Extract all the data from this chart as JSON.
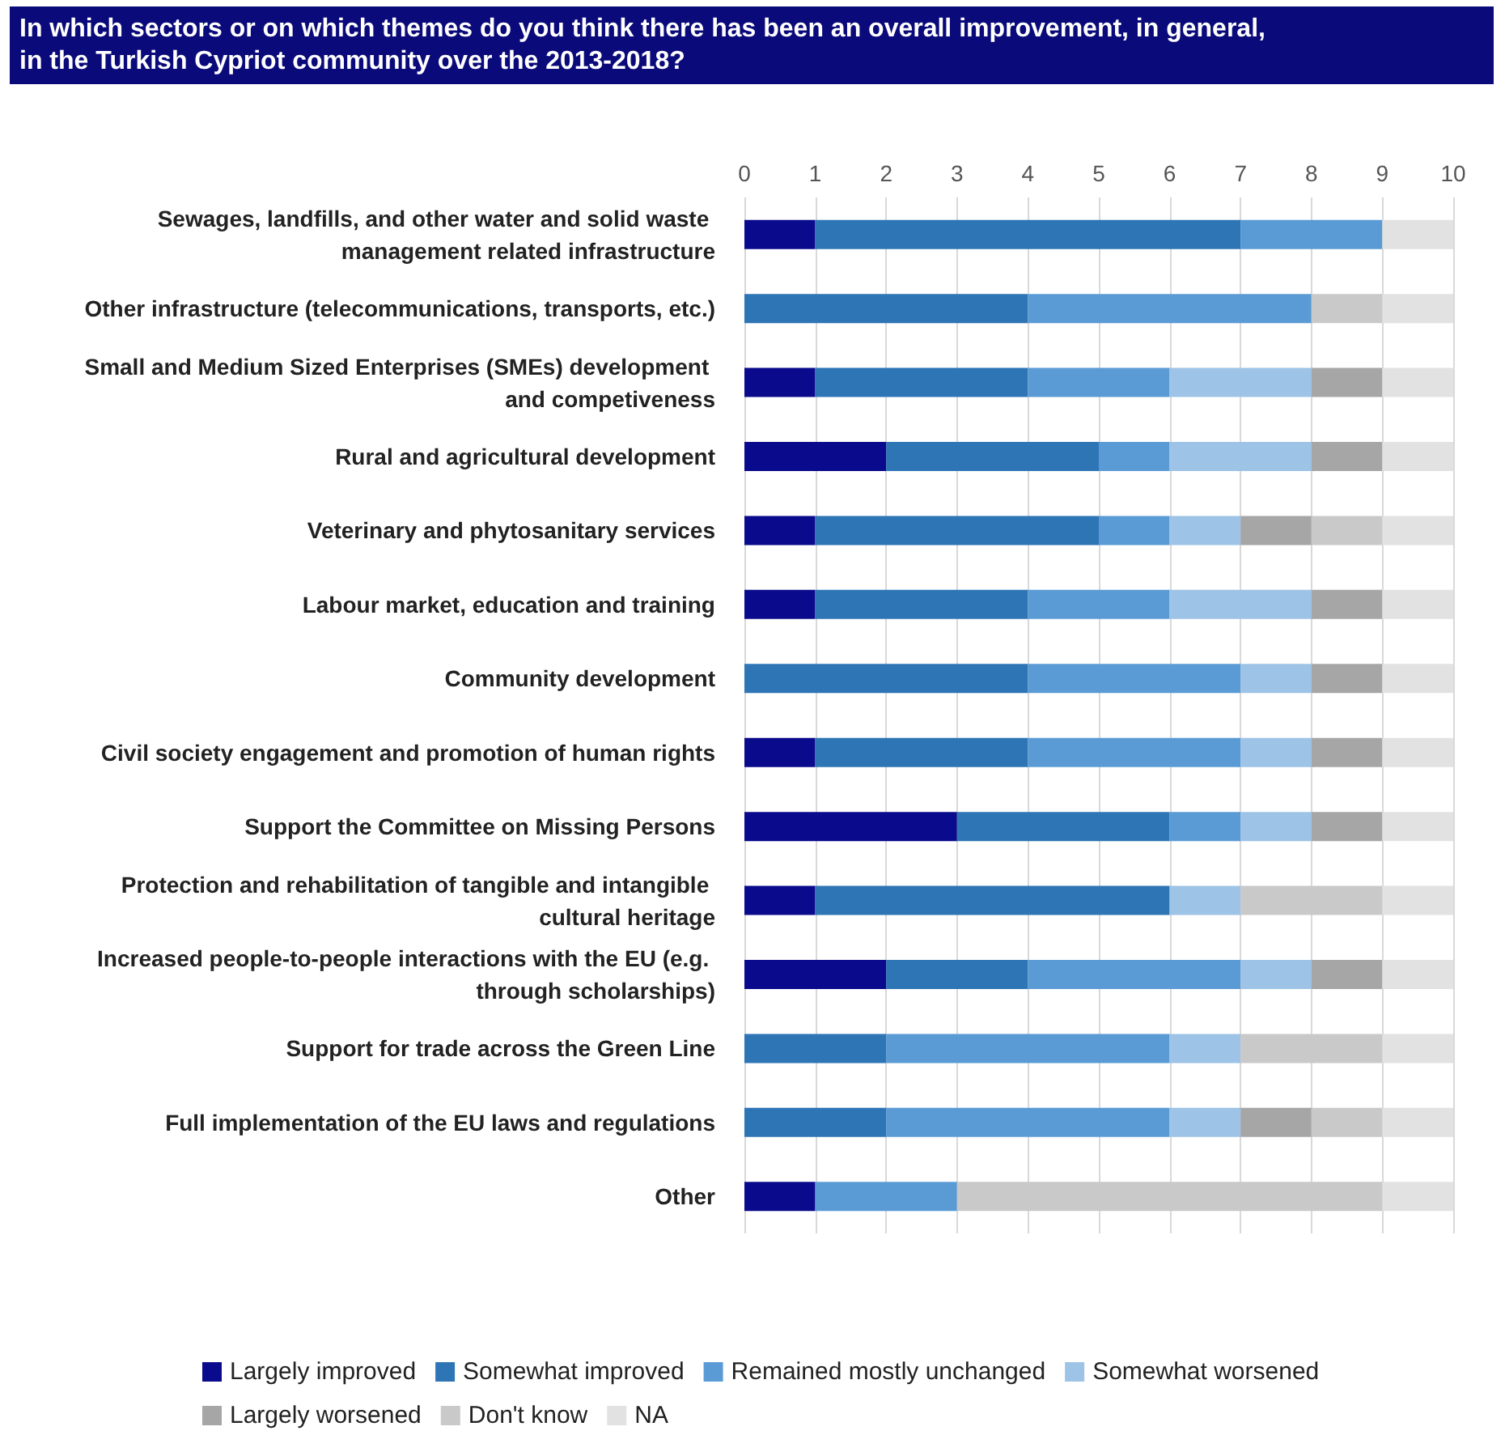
{
  "chart_data": {
    "type": "bar",
    "orientation": "horizontal",
    "stacked": true,
    "title": "In which sectors or on which themes do you think there has been an overall improvement, in general, in the Turkish Cypriot community over the 2013-2018?",
    "categories": [
      "Sewages, landfills, and other water and solid waste management related infrastructure",
      "Other infrastructure (telecommunications, transports, etc.)",
      "Small and Medium Sized Enterprises (SMEs) development and competiveness",
      "Rural and agricultural development",
      "Veterinary and phytosanitary services",
      "Labour market, education and training",
      "Community development",
      "Civil society engagement and promotion of human rights",
      "Support the Committee on Missing Persons",
      "Protection and rehabilitation of tangible and intangible cultural heritage",
      "Increased people-to-people interactions with the EU (e.g. through scholarships)",
      "Support for trade across the Green Line",
      "Full implementation of the EU laws and regulations",
      "Other"
    ],
    "series": [
      {
        "name": "Largely improved",
        "color": "#0a0a8c",
        "values": [
          1,
          0,
          1,
          2,
          1,
          1,
          0,
          1,
          3,
          1,
          2,
          0,
          0,
          1
        ]
      },
      {
        "name": "Somewhat improved",
        "color": "#2e75b6",
        "values": [
          6,
          4,
          3,
          3,
          4,
          3,
          4,
          3,
          3,
          5,
          2,
          2,
          2,
          0
        ]
      },
      {
        "name": "Remained mostly unchanged",
        "color": "#5b9bd5",
        "values": [
          2,
          4,
          2,
          1,
          1,
          2,
          3,
          3,
          1,
          0,
          3,
          4,
          4,
          2
        ]
      },
      {
        "name": "Somewhat worsened",
        "color": "#9dc3e6",
        "values": [
          0,
          0,
          2,
          2,
          1,
          2,
          1,
          1,
          1,
          1,
          1,
          1,
          1,
          0
        ]
      },
      {
        "name": "Largely worsened",
        "color": "#a6a6a6",
        "values": [
          0,
          0,
          1,
          1,
          1,
          1,
          1,
          1,
          1,
          0,
          1,
          0,
          1,
          0
        ]
      },
      {
        "name": "Don't know",
        "color": "#c9c9c9",
        "values": [
          0,
          1,
          0,
          0,
          1,
          0,
          0,
          0,
          0,
          2,
          0,
          2,
          1,
          6
        ]
      },
      {
        "name": "NA",
        "color": "#e2e2e2",
        "values": [
          1,
          1,
          1,
          1,
          1,
          1,
          1,
          1,
          1,
          1,
          1,
          1,
          1,
          1
        ]
      }
    ],
    "xlim": [
      0,
      10
    ],
    "xticks": [
      0,
      1,
      2,
      3,
      4,
      5,
      6,
      7,
      8,
      9,
      10
    ],
    "grid": "x",
    "legend": "bottom"
  }
}
